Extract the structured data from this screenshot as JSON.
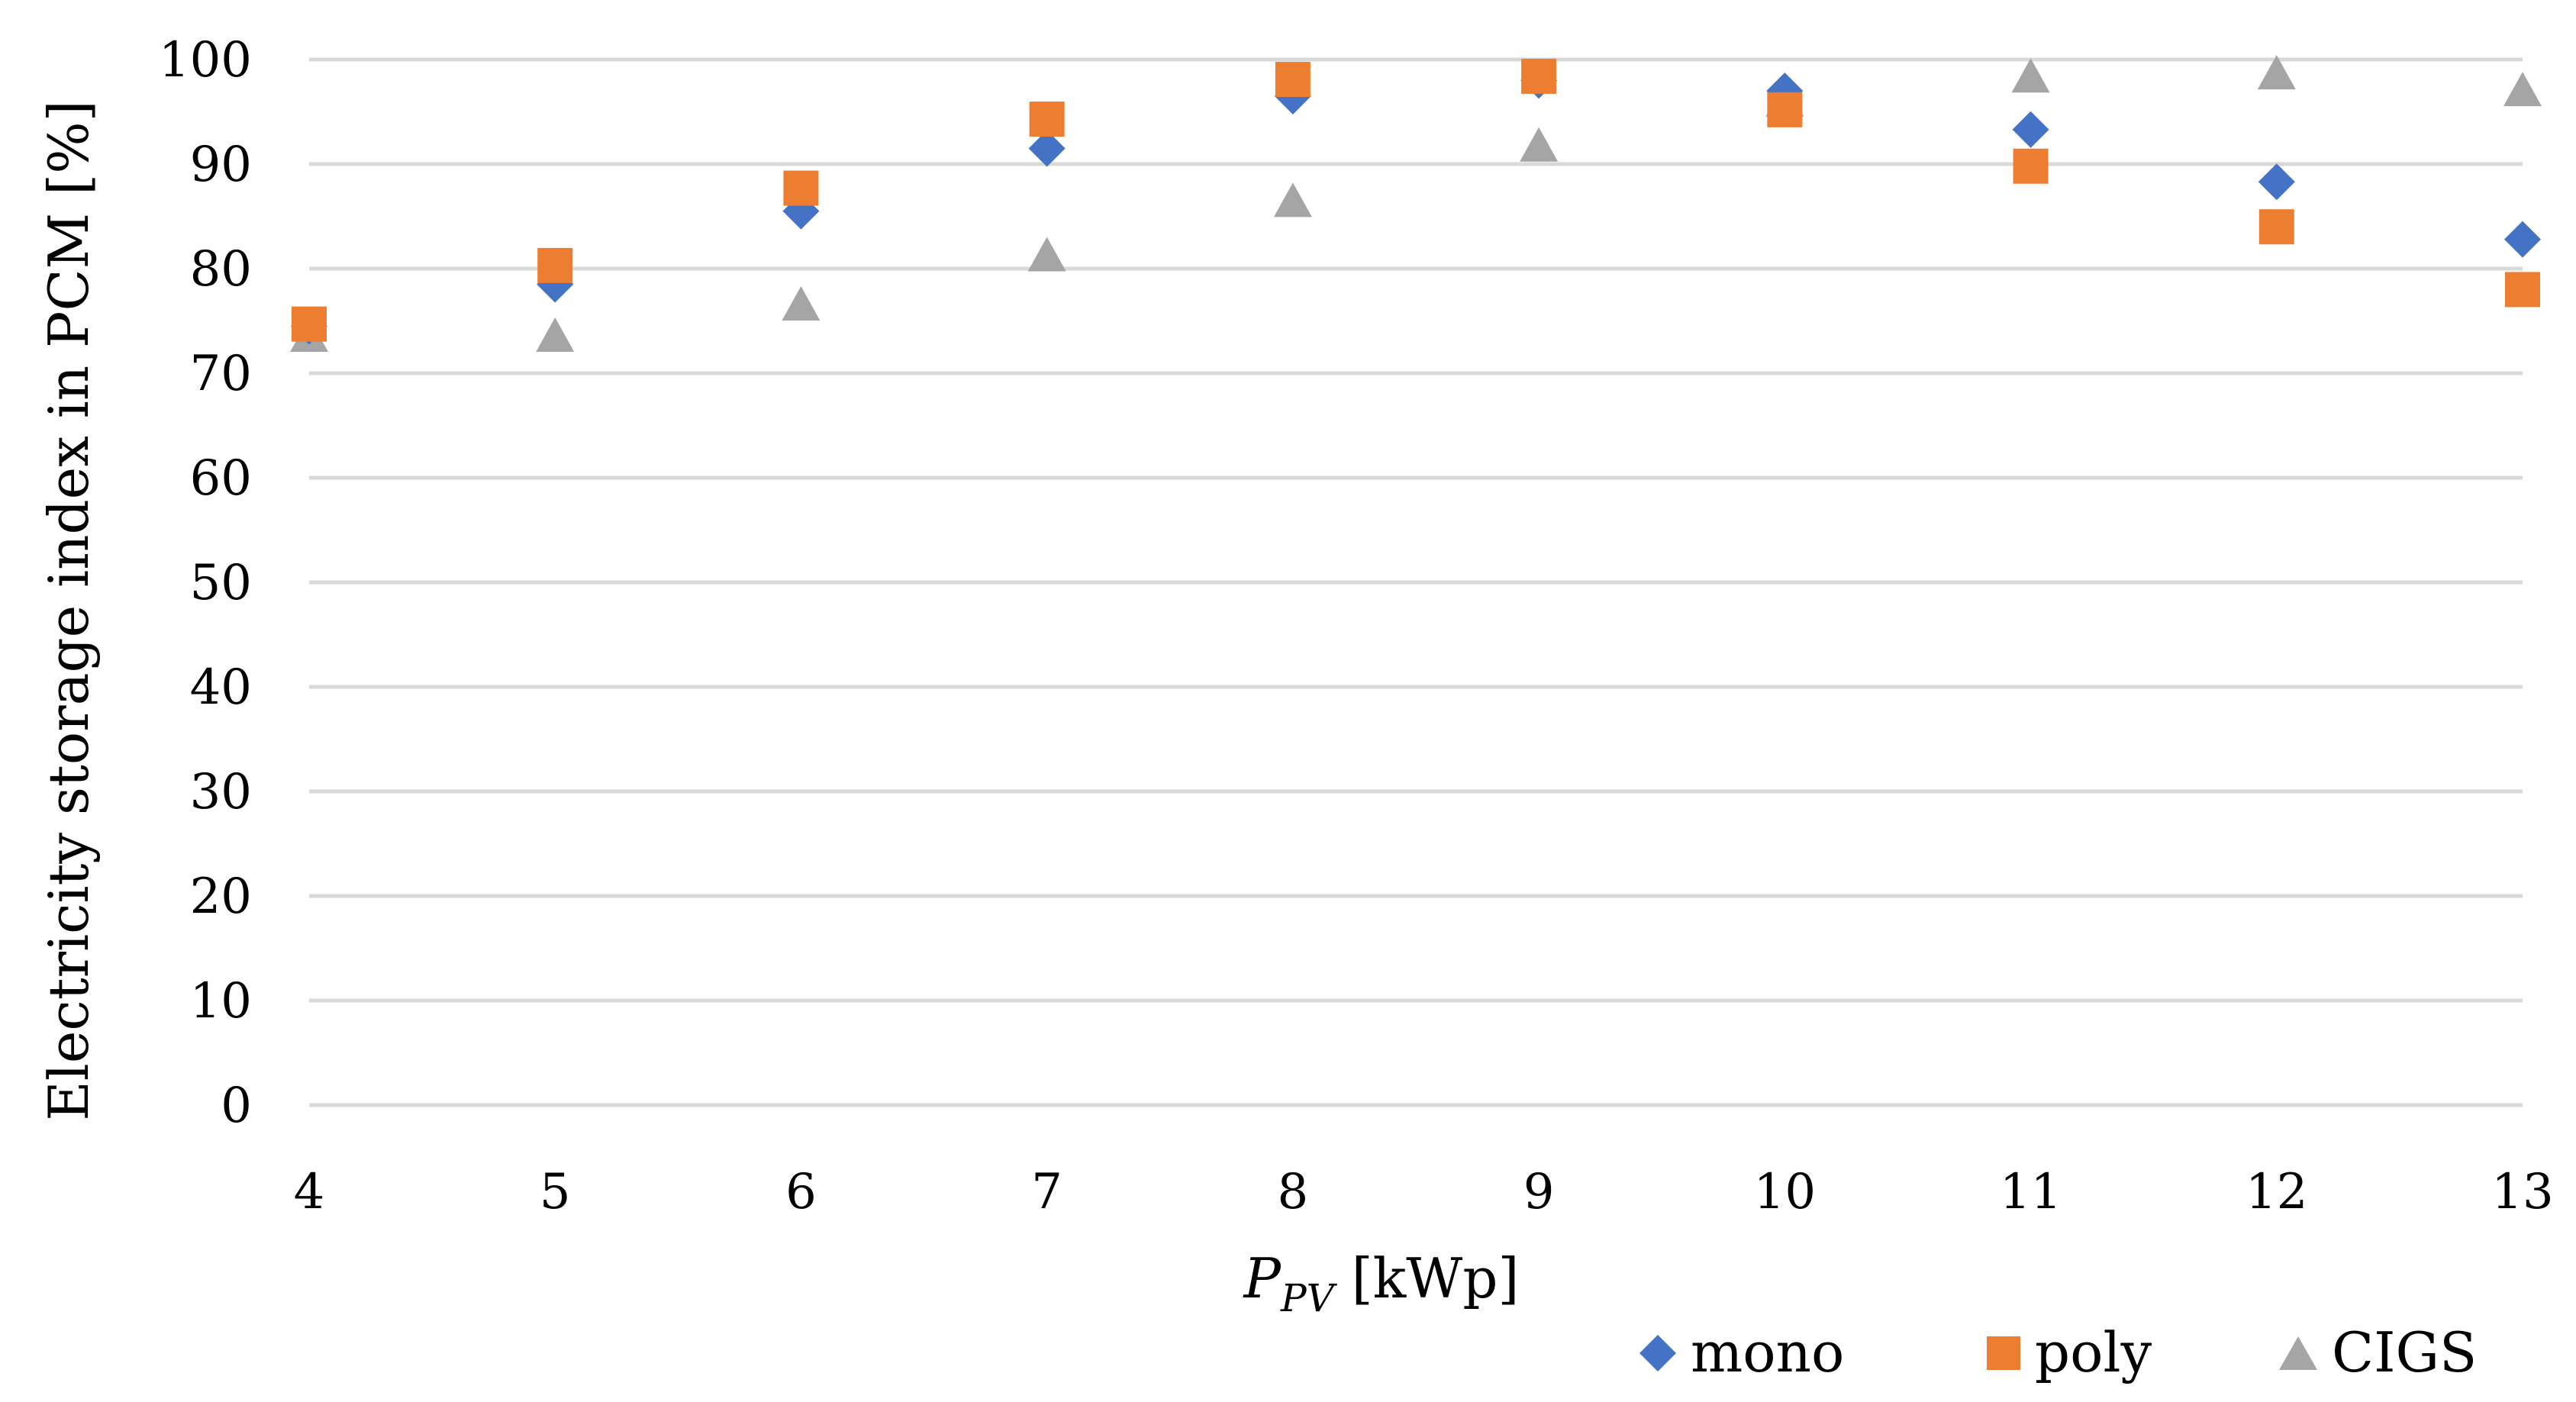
{
  "chart_data": {
    "type": "scatter",
    "title": "",
    "xlabel": "P",
    "xlabel_subscript": "PV",
    "xlabel_unit": " [kWp]",
    "ylabel": "Electricity storage index in PCM [%]",
    "x": [
      4,
      5,
      6,
      7,
      8,
      9,
      10,
      11,
      12,
      13
    ],
    "xlim": [
      4,
      13
    ],
    "ylim": [
      0,
      100
    ],
    "yticks": [
      0,
      10,
      20,
      30,
      40,
      50,
      60,
      70,
      80,
      90,
      100
    ],
    "grid": true,
    "legend_position": "bottom-right",
    "series": [
      {
        "name": "mono",
        "marker": "diamond",
        "color": "#4472C4",
        "values": [
          74.5,
          78.5,
          85.5,
          91.5,
          96.5,
          98.0,
          97.0,
          93.3,
          88.3,
          82.8
        ]
      },
      {
        "name": "poly",
        "marker": "square",
        "color": "#ED7D31",
        "values": [
          74.7,
          80.3,
          87.7,
          94.3,
          98.1,
          98.4,
          95.2,
          89.8,
          84.0,
          78.0
        ]
      },
      {
        "name": "CIGS",
        "marker": "triangle",
        "color": "#A5A5A5",
        "values": [
          73.5,
          73.5,
          76.5,
          81.2,
          86.4,
          91.7,
          96.0,
          98.3,
          98.6,
          97.0
        ]
      }
    ]
  }
}
